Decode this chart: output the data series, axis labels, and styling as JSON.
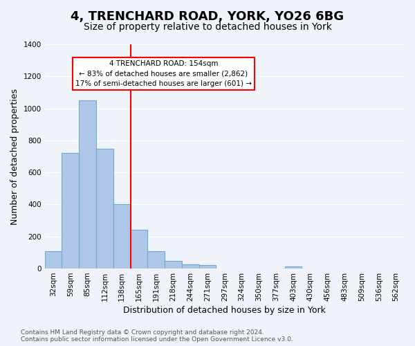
{
  "title": "4, TRENCHARD ROAD, YORK, YO26 6BG",
  "subtitle": "Size of property relative to detached houses in York",
  "xlabel": "Distribution of detached houses by size in York",
  "ylabel": "Number of detached properties",
  "bin_labels": [
    "32sqm",
    "59sqm",
    "85sqm",
    "112sqm",
    "138sqm",
    "165sqm",
    "191sqm",
    "218sqm",
    "244sqm",
    "271sqm",
    "297sqm",
    "324sqm",
    "350sqm",
    "377sqm",
    "403sqm",
    "430sqm",
    "456sqm",
    "483sqm",
    "509sqm",
    "536sqm",
    "562sqm"
  ],
  "bar_heights": [
    107,
    720,
    1050,
    748,
    400,
    243,
    110,
    48,
    27,
    22,
    0,
    0,
    0,
    0,
    15,
    0,
    0,
    0,
    0,
    0,
    0
  ],
  "bar_color": "#aec6e8",
  "bar_edge_color": "#6aaad4",
  "vline_x": 5,
  "vline_label": "4 TRENCHARD ROAD: 154sqm",
  "annotation_line1": "← 83% of detached houses are smaller (2,862)",
  "annotation_line2": "17% of semi-detached houses are larger (601) →",
  "annotation_box_color": "white",
  "annotation_box_edge_color": "red",
  "vline_color": "red",
  "ylim": [
    0,
    1400
  ],
  "yticks": [
    0,
    200,
    400,
    600,
    800,
    1000,
    1200,
    1400
  ],
  "footer_line1": "Contains HM Land Registry data © Crown copyright and database right 2024.",
  "footer_line2": "Contains public sector information licensed under the Open Government Licence v3.0.",
  "background_color": "#f0f4fa",
  "grid_color": "white",
  "title_fontsize": 13,
  "subtitle_fontsize": 10,
  "axis_label_fontsize": 9,
  "tick_fontsize": 7.5,
  "footer_fontsize": 6.5
}
